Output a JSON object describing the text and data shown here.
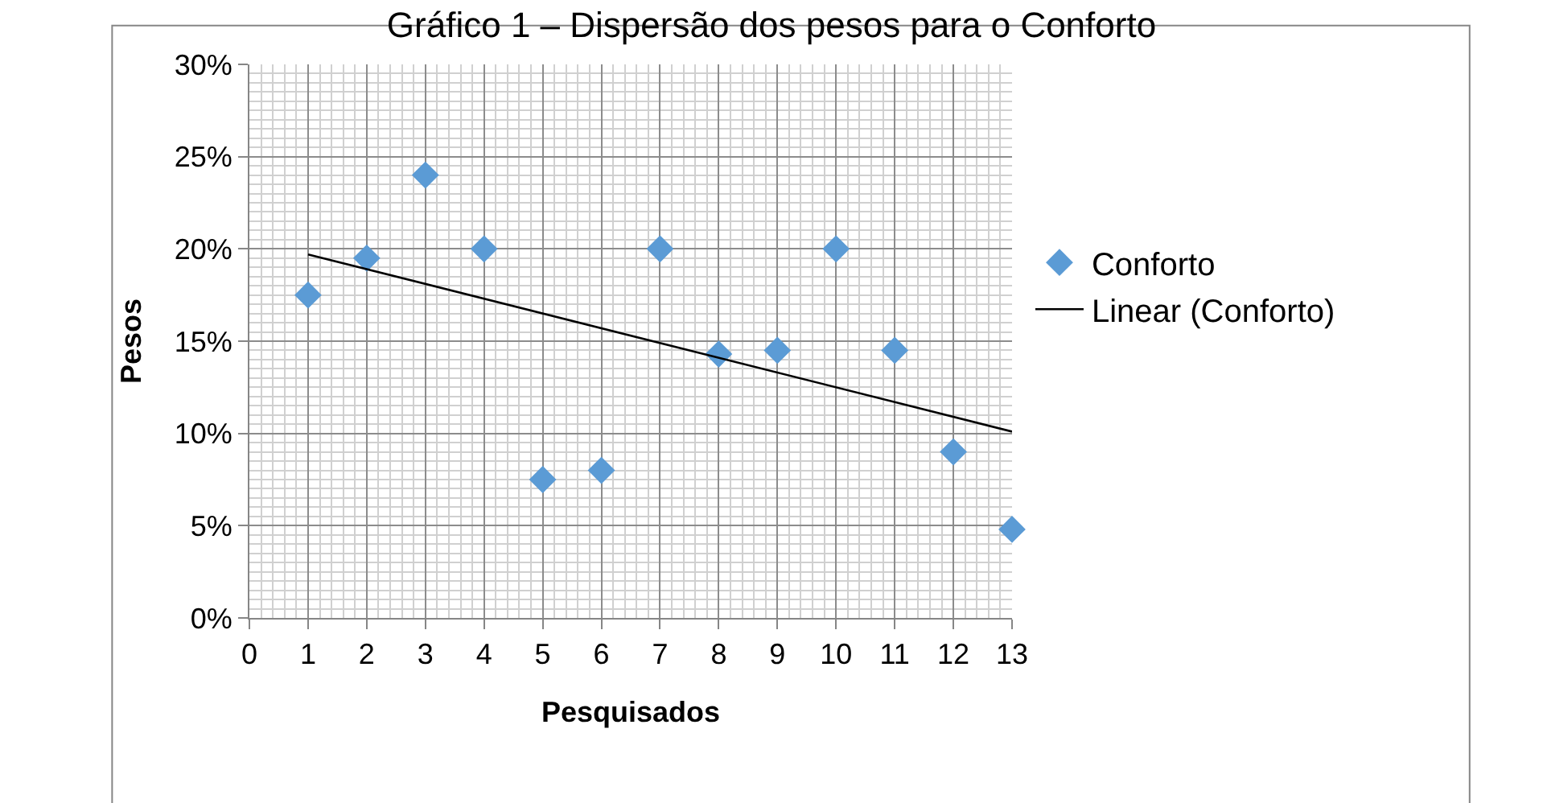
{
  "chart_data": {
    "type": "scatter",
    "title": "Gráfico 1 – Dispersão dos pesos para o Conforto",
    "xlabel": "Pesquisados",
    "ylabel": "Pesos",
    "x": [
      1,
      2,
      3,
      4,
      5,
      6,
      7,
      8,
      9,
      10,
      11,
      12,
      13
    ],
    "series": [
      {
        "name": "Conforto",
        "color": "#5b9bd5",
        "marker": "diamond",
        "values": [
          17.5,
          19.5,
          24,
          20,
          7.5,
          8,
          20,
          14.3,
          14.5,
          20,
          14.5,
          9,
          4.8
        ]
      },
      {
        "name": "Linear (Conforto)",
        "type": "line",
        "color": "#000000",
        "x": [
          1,
          13
        ],
        "values": [
          19.7,
          10.1
        ]
      }
    ],
    "xlim": [
      0,
      13
    ],
    "xticks": [
      0,
      1,
      2,
      3,
      4,
      5,
      6,
      7,
      8,
      9,
      10,
      11,
      12,
      13
    ],
    "ylim": [
      0,
      30
    ],
    "yticks": [
      {
        "value": 0,
        "label": "0%"
      },
      {
        "value": 5,
        "label": "5%"
      },
      {
        "value": 10,
        "label": "10%"
      },
      {
        "value": 15,
        "label": "15%"
      },
      {
        "value": 20,
        "label": "20%"
      },
      {
        "value": 25,
        "label": "25%"
      },
      {
        "value": 30,
        "label": "30%"
      }
    ],
    "grid": true,
    "legend": "right"
  }
}
